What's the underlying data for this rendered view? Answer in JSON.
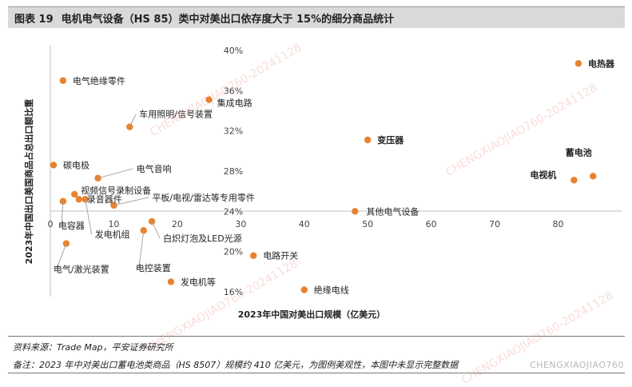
{
  "header": {
    "figure_number": "图表 19",
    "title": "电机电气设备（HS 85）类中对美出口依存度大于 15%的细分商品统计"
  },
  "chart_data": {
    "type": "scatter",
    "xlabel": "2023年中国对美出口规模（亿美元）",
    "ylabel": "2023年中国出口美国商品占总出口额比重",
    "xlim": [
      0,
      90
    ],
    "ylim": [
      16,
      40
    ],
    "x_ticks": [
      "0",
      "10",
      "20",
      "30",
      "40",
      "50",
      "60",
      "70",
      "80"
    ],
    "x_tick_values": [
      0,
      10,
      20,
      30,
      40,
      50,
      60,
      70,
      80
    ],
    "y_ticks": [
      "16%",
      "20%",
      "24%",
      "28%",
      "32%",
      "36%",
      "40%"
    ],
    "y_tick_values": [
      16,
      20,
      24,
      28,
      32,
      36,
      40
    ],
    "grid": false,
    "marker_color": "#e8822e",
    "points": [
      {
        "label": "电热器",
        "x": 83.2,
        "y": 38.7,
        "bold": true
      },
      {
        "label": "电气绝缘零件",
        "x": 2.0,
        "y": 37.0
      },
      {
        "label": "集成电路",
        "x": 25.0,
        "y": 35.1
      },
      {
        "label": "车用照明/信号装置",
        "x": 12.5,
        "y": 32.4
      },
      {
        "label": "变压器",
        "x": 50.0,
        "y": 31.1,
        "bold": true
      },
      {
        "label": "碳电极",
        "x": 0.5,
        "y": 28.6
      },
      {
        "label": "电气音响",
        "x": 7.5,
        "y": 27.3
      },
      {
        "label": "蓄电池",
        "x": 85.5,
        "y": 27.5,
        "bold": true
      },
      {
        "label": "电视机",
        "x": 82.5,
        "y": 27.1,
        "bold": true
      },
      {
        "label": "视频信号录制设备",
        "x": 3.8,
        "y": 25.7
      },
      {
        "label": "录音器件",
        "x": 4.5,
        "y": 25.2
      },
      {
        "label": "平板/电视/雷达等专用零件",
        "x": 10.0,
        "y": 24.6
      },
      {
        "label": "电容器",
        "x": 2.0,
        "y": 25.0
      },
      {
        "label": "其他电气设备",
        "x": 48.0,
        "y": 24.0
      },
      {
        "label": "发电机组",
        "x": 5.5,
        "y": 25.2
      },
      {
        "label": "白炽灯泡及LED光源",
        "x": 16.0,
        "y": 23.0
      },
      {
        "label": "电控装置",
        "x": 14.7,
        "y": 22.1
      },
      {
        "label": "电气/激光装置",
        "x": 2.5,
        "y": 20.8
      },
      {
        "label": "电路开关",
        "x": 32.0,
        "y": 19.6
      },
      {
        "label": "发电机等",
        "x": 19.0,
        "y": 17.0
      },
      {
        "label": "绝缘电线",
        "x": 40.0,
        "y": 16.2
      }
    ]
  },
  "footer": {
    "source": "资料来源：Trade Map，平安证券研究所",
    "note": "备注：2023 年中对美出口蓄电池类商品（HS 8507）规模约 410 亿美元，为图例美观性，本图中未显示完整数据",
    "corner_mark": "CHENGXIAOJIAO760"
  },
  "watermark": "CHENGXIAOJIAO760-20241128"
}
